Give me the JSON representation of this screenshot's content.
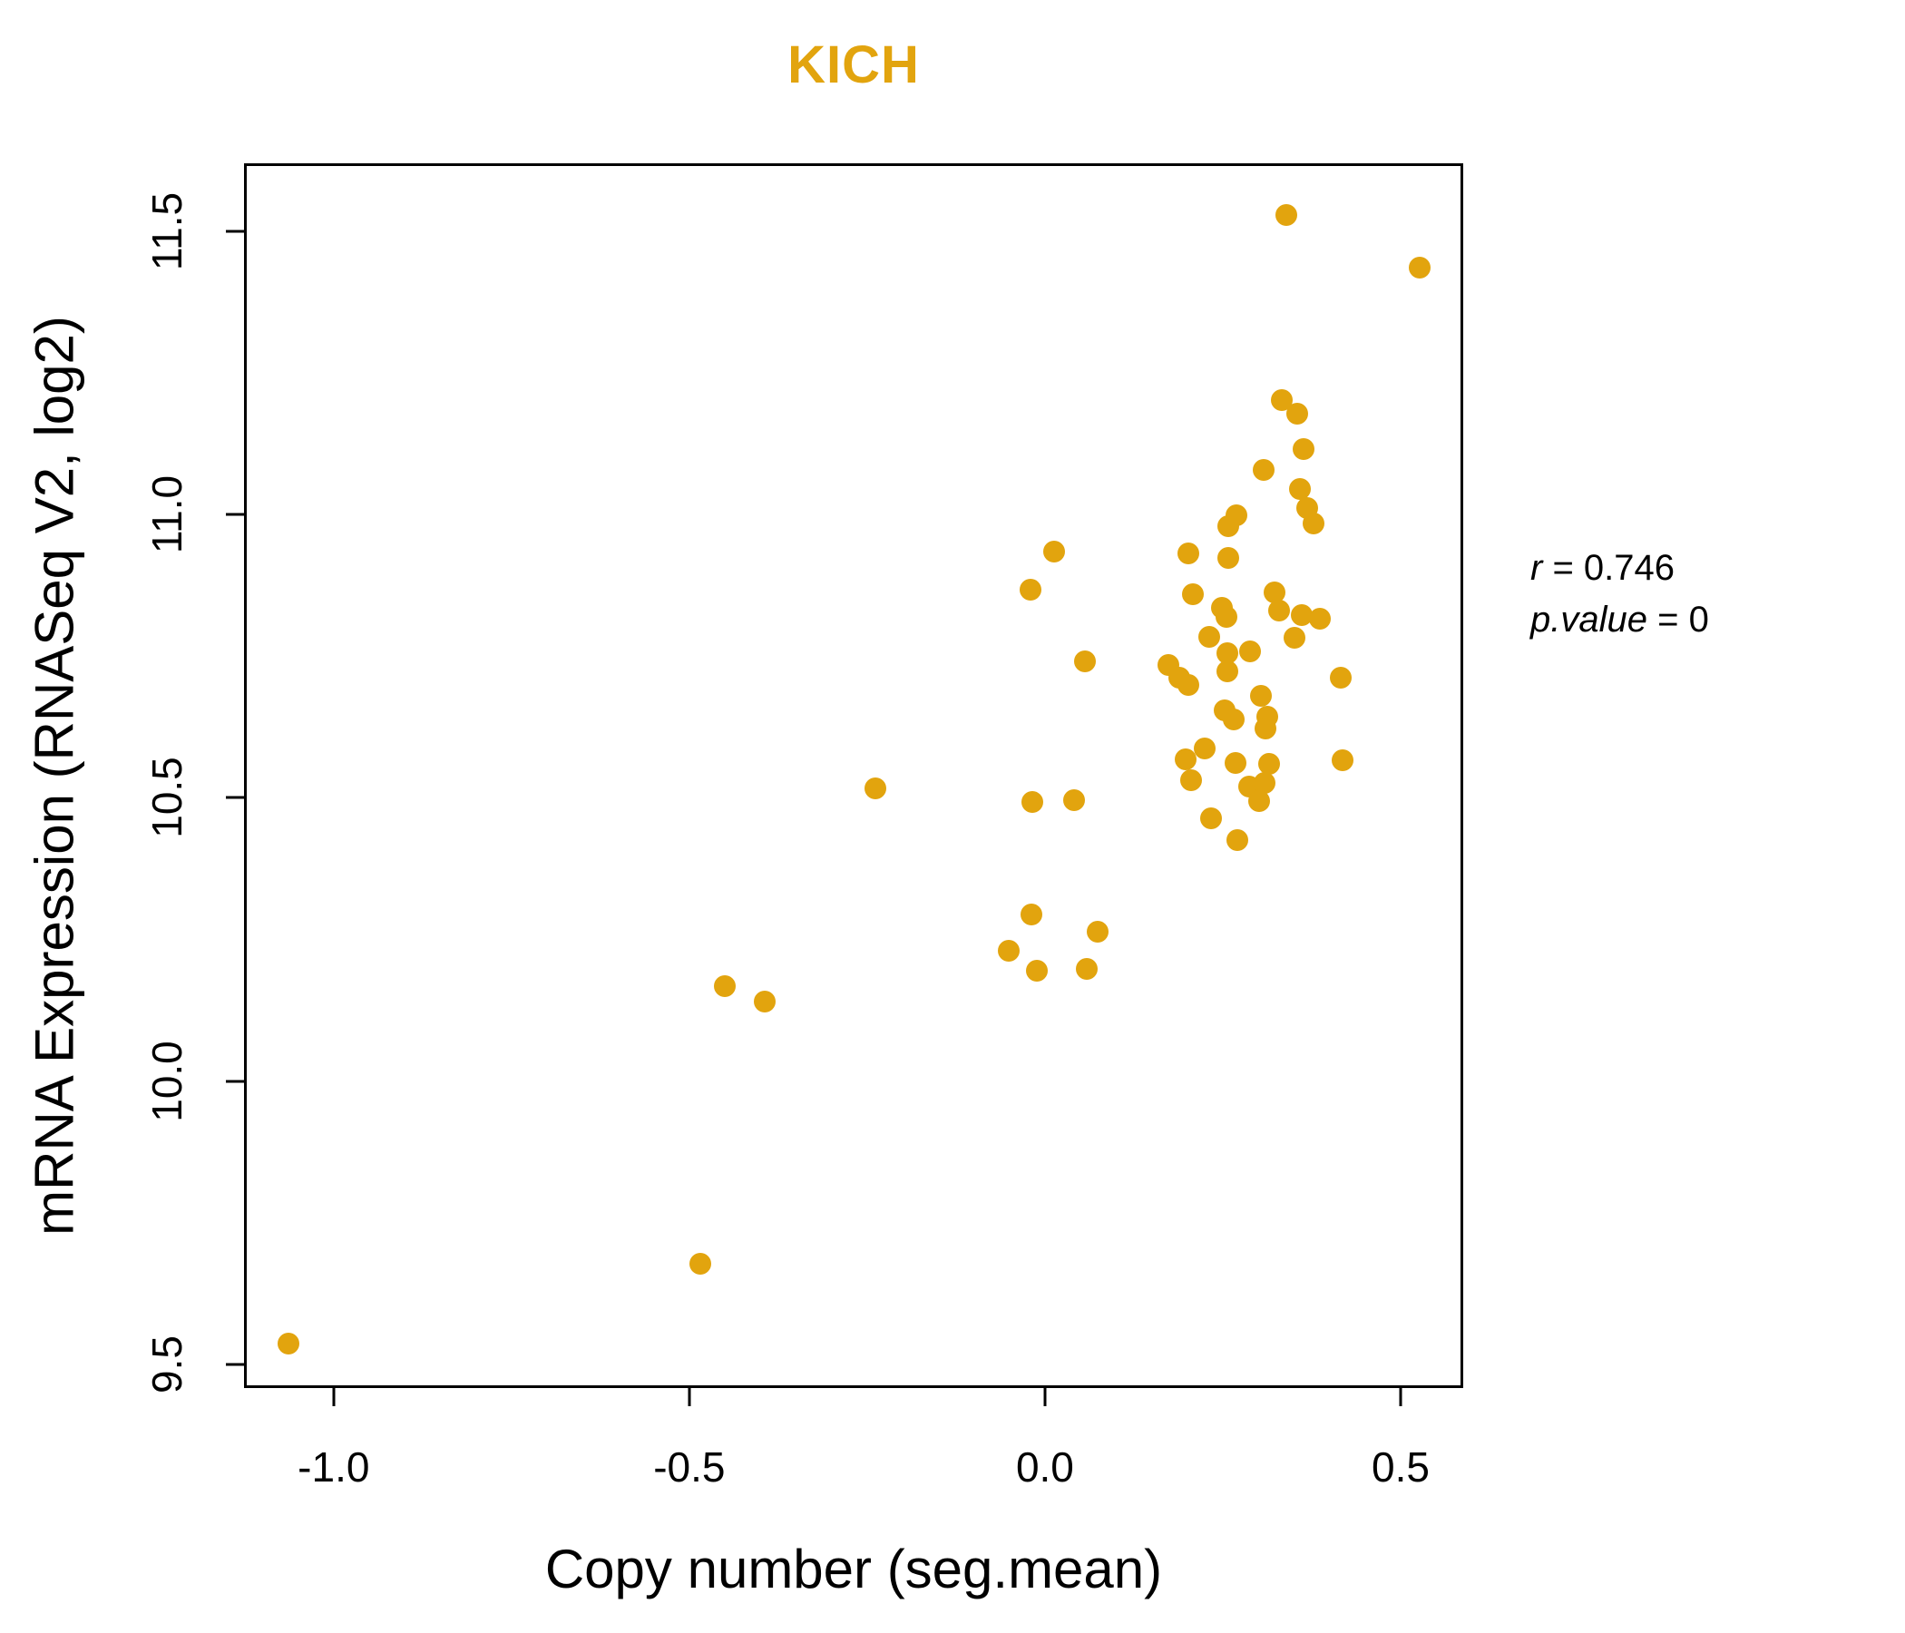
{
  "title": "KICH",
  "colors": {
    "title": "#E2A40E",
    "point": "#E2A40E",
    "axis": "#000000",
    "background": "#FFFFFF"
  },
  "axes": {
    "xlabel": "Copy number (seg.mean)",
    "ylabel": "mRNA Expression (RNASeq V2, log2)",
    "x_tick_values": [
      -1.0,
      -0.5,
      0.0,
      0.5
    ],
    "x_tick_labels": [
      "-1.0",
      "-0.5",
      "0.0",
      "0.5"
    ],
    "y_tick_values": [
      9.5,
      10.0,
      10.5,
      11.0,
      11.5
    ],
    "y_tick_labels": [
      "9.5",
      "10.0",
      "10.5",
      "11.0",
      "11.5"
    ]
  },
  "annotation": {
    "r_var": "r",
    "r_rest": " = 0.746",
    "p_var": "p.value",
    "p_rest": " = 0"
  },
  "chart_data": {
    "type": "scatter",
    "title": "KICH",
    "xlabel": "Copy number (seg.mean)",
    "ylabel": "mRNA Expression (RNASeq V2, log2)",
    "xlim": [
      -1.126,
      0.588
    ],
    "ylim": [
      9.458,
      11.62
    ],
    "grid": false,
    "legend": null,
    "r": 0.746,
    "p_value": 0,
    "points": [
      [
        0.339,
        11.529
      ],
      [
        0.527,
        11.436
      ],
      [
        0.333,
        11.202
      ],
      [
        0.355,
        11.178
      ],
      [
        0.364,
        11.116
      ],
      [
        0.307,
        11.079
      ],
      [
        0.358,
        11.045
      ],
      [
        0.369,
        11.012
      ],
      [
        0.378,
        10.984
      ],
      [
        0.269,
        10.999
      ],
      [
        0.258,
        10.98
      ],
      [
        0.202,
        10.932
      ],
      [
        0.258,
        10.923
      ],
      [
        0.208,
        10.859
      ],
      [
        0.323,
        10.863
      ],
      [
        0.329,
        10.831
      ],
      [
        0.249,
        10.835
      ],
      [
        0.255,
        10.819
      ],
      [
        0.361,
        10.823
      ],
      [
        0.386,
        10.816
      ],
      [
        0.231,
        10.784
      ],
      [
        0.351,
        10.783
      ],
      [
        0.256,
        10.755
      ],
      [
        0.288,
        10.759
      ],
      [
        0.173,
        10.734
      ],
      [
        0.256,
        10.723
      ],
      [
        0.189,
        10.712
      ],
      [
        0.202,
        10.699
      ],
      [
        0.416,
        10.712
      ],
      [
        0.304,
        10.68
      ],
      [
        0.253,
        10.654
      ],
      [
        0.265,
        10.638
      ],
      [
        0.313,
        10.643
      ],
      [
        0.31,
        10.622
      ],
      [
        0.224,
        10.587
      ],
      [
        0.198,
        10.568
      ],
      [
        0.268,
        10.562
      ],
      [
        0.315,
        10.56
      ],
      [
        0.418,
        10.566
      ],
      [
        0.205,
        10.531
      ],
      [
        0.287,
        10.52
      ],
      [
        0.309,
        10.526
      ],
      [
        0.301,
        10.494
      ],
      [
        0.233,
        10.464
      ],
      [
        0.27,
        10.425
      ],
      [
        0.013,
        10.935
      ],
      [
        -0.02,
        10.867
      ],
      [
        0.056,
        10.741
      ],
      [
        -0.239,
        10.517
      ],
      [
        -0.018,
        10.493
      ],
      [
        0.041,
        10.496
      ],
      [
        -0.019,
        10.294
      ],
      [
        0.074,
        10.264
      ],
      [
        -0.051,
        10.23
      ],
      [
        -0.011,
        10.195
      ],
      [
        0.059,
        10.198
      ],
      [
        -0.45,
        10.168
      ],
      [
        -0.394,
        10.14
      ],
      [
        -0.485,
        9.678
      ],
      [
        -1.064,
        9.537
      ]
    ]
  }
}
